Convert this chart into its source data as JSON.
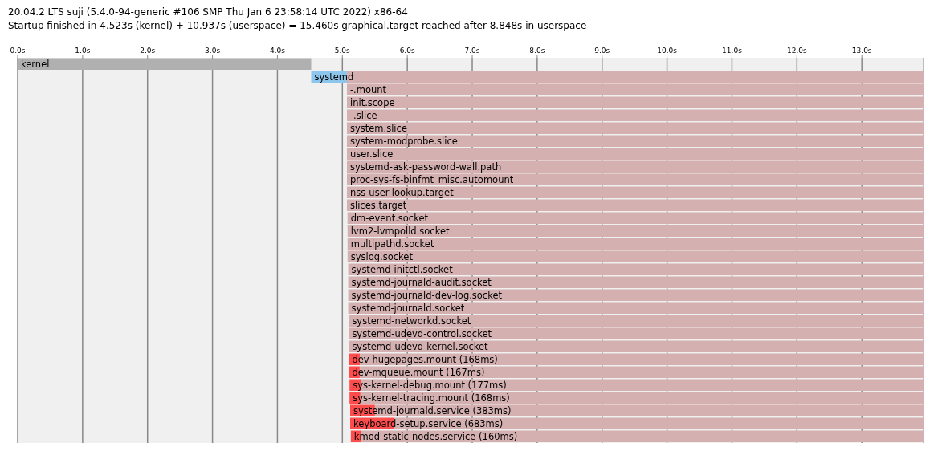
{
  "chart_data": {
    "type": "bar",
    "orientation": "horizontal",
    "title": "20.04.2 LTS suji (5.4.0-94-generic #106 SMP Thu Jan 6 23:58:14 UTC 2022) x86-64",
    "subtitle": "Startup finished in 4.523s (kernel) + 10.937s (userspace) = 15.460s graphical.target reached after 8.848s in userspace",
    "categories": [
      "kernel",
      "systemd",
      "-.mount",
      "init.scope",
      "-.slice",
      "system.slice",
      "system-modprobe.slice",
      "user.slice",
      "systemd-ask-password-wall.path",
      "proc-sys-fs-binfmt_misc.automount",
      "nss-user-lookup.target",
      "slices.target",
      "dm-event.socket",
      "lvm2-lvmpolld.socket",
      "multipathd.socket",
      "syslog.socket",
      "systemd-initctl.socket",
      "systemd-journald-audit.socket",
      "systemd-journald-dev-log.socket",
      "systemd-journald.socket",
      "systemd-networkd.socket",
      "systemd-udevd-control.socket",
      "systemd-udevd-kernel.socket",
      "dev-hugepages.mount (168ms)",
      "dev-mqueue.mount (167ms)",
      "sys-kernel-debug.mount (177ms)",
      "sys-kernel-tracing.mount (168ms)",
      "systemd-journald.service (383ms)",
      "keyboard-setup.service (683ms)",
      "kmod-static-nodes.service (160ms)"
    ],
    "series": [
      {
        "colors": [
          "#b0b0b0",
          "#8cc6ec",
          null,
          null,
          null,
          null,
          null,
          null,
          null,
          null,
          null,
          null,
          null,
          null,
          null,
          null,
          null,
          null,
          null,
          null,
          null,
          null,
          null,
          "#ff4d4d",
          "#ff4d4d",
          "#ff4d4d",
          "#ff4d4d",
          "#ff4d4d",
          "#ff4d4d",
          "#ff4d4d"
        ],
        "base": [
          0,
          4.52,
          null,
          null,
          null,
          null,
          null,
          null,
          null,
          null,
          null,
          null,
          null,
          null,
          null,
          null,
          null,
          null,
          null,
          null,
          null,
          null,
          null,
          5.1,
          5.1,
          5.11,
          5.11,
          5.12,
          5.12,
          5.13
        ],
        "values": [
          4.52,
          0.55,
          null,
          null,
          null,
          null,
          null,
          null,
          null,
          null,
          null,
          null,
          null,
          null,
          null,
          null,
          null,
          null,
          null,
          null,
          null,
          null,
          null,
          0.168,
          0.167,
          0.177,
          0.168,
          0.383,
          0.683,
          0.16
        ]
      },
      {
        "color": "#d4b0b0",
        "base": [
          null,
          5.07,
          5.07,
          5.07,
          5.07,
          5.07,
          5.07,
          5.07,
          5.07,
          5.07,
          5.07,
          5.07,
          5.08,
          5.08,
          5.08,
          5.08,
          5.09,
          5.09,
          5.09,
          5.09,
          5.1,
          5.1,
          5.1,
          5.27,
          5.27,
          5.29,
          5.28,
          5.5,
          5.8,
          5.29
        ],
        "values": [
          null,
          8.88,
          8.88,
          8.88,
          8.88,
          8.88,
          8.88,
          8.88,
          8.88,
          8.88,
          8.88,
          8.88,
          8.87,
          8.87,
          8.87,
          8.87,
          8.86,
          8.86,
          8.86,
          8.86,
          8.85,
          8.85,
          8.85,
          8.68,
          8.68,
          8.66,
          8.67,
          8.45,
          8.15,
          8.66
        ]
      }
    ],
    "xlim": [
      0,
      13.95
    ],
    "xticks": [
      {
        "value": 0,
        "label": "0.0s"
      },
      {
        "value": 1,
        "label": "1.0s"
      },
      {
        "value": 2,
        "label": "2.0s"
      },
      {
        "value": 3,
        "label": "3.0s"
      },
      {
        "value": 4,
        "label": "4.0s"
      },
      {
        "value": 5,
        "label": "5.0s"
      },
      {
        "value": 6,
        "label": "6.0s"
      },
      {
        "value": 7,
        "label": "7.0s"
      },
      {
        "value": 8,
        "label": "8.0s"
      },
      {
        "value": 9,
        "label": "9.0s"
      },
      {
        "value": 10,
        "label": "10.0s"
      },
      {
        "value": 11,
        "label": "11.0s"
      },
      {
        "value": 12,
        "label": "12.0s"
      },
      {
        "value": 13,
        "label": "13.0s"
      }
    ],
    "grid": "x"
  }
}
